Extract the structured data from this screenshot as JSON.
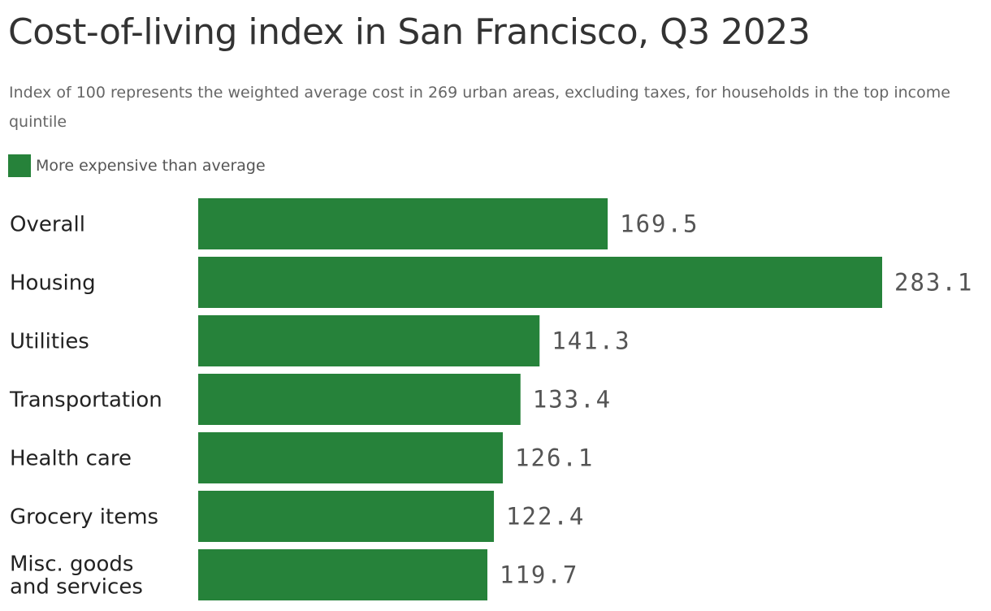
{
  "header": {
    "title": "Cost-of-living index in San Francisco, Q3 2023",
    "subtitle": "Index of 100 represents the weighted average cost in 269 urban areas, excluding taxes, for households in the top income quintile"
  },
  "legend": {
    "label": "More expensive than average",
    "color": "#26823a"
  },
  "chart_data": {
    "type": "bar",
    "orientation": "horizontal",
    "title": "Cost-of-living index in San Francisco, Q3 2023",
    "subtitle": "Index of 100 represents the weighted average cost in 269 urban areas, excluding taxes, for households in the top income quintile",
    "categories": [
      "Overall",
      "Housing",
      "Utilities",
      "Transportation",
      "Health care",
      "Grocery items",
      "Misc. goods and services"
    ],
    "series": [
      {
        "name": "More expensive than average",
        "values": [
          169.5,
          283.1,
          141.3,
          133.4,
          126.1,
          122.4,
          119.7
        ],
        "labels": [
          "169.5",
          "283.1",
          "141.3",
          "133.4",
          "126.1",
          "122.4",
          "119.7"
        ],
        "color": "#26823a"
      }
    ],
    "xlim": [
      0,
      283.1
    ],
    "grid": false,
    "legend_position": "top-left",
    "xlabel": "",
    "ylabel": ""
  }
}
